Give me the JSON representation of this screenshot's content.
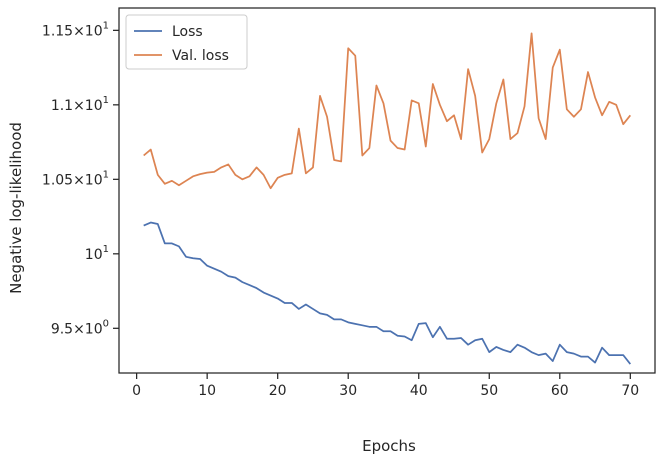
{
  "chart_data": {
    "type": "line",
    "xlabel": "Epochs",
    "ylabel": "Negative log-likelihood",
    "xlim": [
      -2.5,
      73.5
    ],
    "ylim": [
      9.2,
      11.65
    ],
    "x_ticks": [
      0,
      10,
      20,
      30,
      40,
      50,
      60,
      70
    ],
    "x_tick_labels": [
      "0",
      "10",
      "20",
      "30",
      "40",
      "50",
      "60",
      "70"
    ],
    "y_ticks": [
      {
        "value": 9.5,
        "base": "9.5",
        "times": "×",
        "mant": "10",
        "exp": "0"
      },
      {
        "value": 10.0,
        "base": "",
        "times": "",
        "mant": "10",
        "exp": "1"
      },
      {
        "value": 10.5,
        "base": "1.05",
        "times": "×",
        "mant": "10",
        "exp": "1"
      },
      {
        "value": 11.0,
        "base": "1.1",
        "times": "×",
        "mant": "10",
        "exp": "1"
      },
      {
        "value": 11.5,
        "base": "1.15",
        "times": "×",
        "mant": "10",
        "exp": "1"
      }
    ],
    "legend": {
      "location": "upper-left"
    },
    "series": [
      {
        "name": "Loss",
        "color": "#4c72b0",
        "x": [
          1,
          2,
          3,
          4,
          5,
          6,
          7,
          8,
          9,
          10,
          11,
          12,
          13,
          14,
          15,
          16,
          17,
          18,
          19,
          20,
          21,
          22,
          23,
          24,
          25,
          26,
          27,
          28,
          29,
          30,
          31,
          32,
          33,
          34,
          35,
          36,
          37,
          38,
          39,
          40,
          41,
          42,
          43,
          44,
          45,
          46,
          47,
          48,
          49,
          50,
          51,
          52,
          53,
          54,
          55,
          56,
          57,
          58,
          59,
          60,
          61,
          62,
          63,
          64,
          65,
          66,
          67,
          68,
          69,
          70
        ],
        "values": [
          10.19,
          10.21,
          10.2,
          10.07,
          10.07,
          10.05,
          9.98,
          9.97,
          9.965,
          9.92,
          9.9,
          9.88,
          9.85,
          9.84,
          9.81,
          9.79,
          9.77,
          9.74,
          9.72,
          9.7,
          9.67,
          9.67,
          9.63,
          9.66,
          9.63,
          9.6,
          9.59,
          9.56,
          9.56,
          9.54,
          9.53,
          9.52,
          9.51,
          9.51,
          9.48,
          9.48,
          9.45,
          9.445,
          9.42,
          9.53,
          9.535,
          9.44,
          9.51,
          9.43,
          9.43,
          9.435,
          9.39,
          9.42,
          9.43,
          9.34,
          9.375,
          9.355,
          9.34,
          9.39,
          9.37,
          9.34,
          9.32,
          9.33,
          9.28,
          9.39,
          9.34,
          9.33,
          9.31,
          9.31,
          9.27,
          9.37,
          9.32,
          9.32,
          9.32,
          9.26
        ]
      },
      {
        "name": "Val. loss",
        "color": "#dd8452",
        "x": [
          1,
          2,
          3,
          4,
          5,
          6,
          7,
          8,
          9,
          10,
          11,
          12,
          13,
          14,
          15,
          16,
          17,
          18,
          19,
          20,
          21,
          22,
          23,
          24,
          25,
          26,
          27,
          28,
          29,
          30,
          31,
          32,
          33,
          34,
          35,
          36,
          37,
          38,
          39,
          40,
          41,
          42,
          43,
          44,
          45,
          46,
          47,
          48,
          49,
          50,
          51,
          52,
          53,
          54,
          55,
          56,
          57,
          58,
          59,
          60,
          61,
          62,
          63,
          64,
          65,
          66,
          67,
          68,
          69,
          70
        ],
        "values": [
          10.66,
          10.7,
          10.53,
          10.47,
          10.49,
          10.46,
          10.49,
          10.52,
          10.535,
          10.545,
          10.55,
          10.58,
          10.6,
          10.53,
          10.5,
          10.52,
          10.58,
          10.53,
          10.44,
          10.51,
          10.53,
          10.54,
          10.84,
          10.54,
          10.58,
          11.06,
          10.92,
          10.63,
          10.62,
          11.38,
          11.33,
          10.66,
          10.71,
          11.13,
          11.01,
          10.76,
          10.71,
          10.7,
          11.03,
          11.01,
          10.72,
          11.14,
          11.0,
          10.89,
          10.93,
          10.77,
          11.24,
          11.06,
          10.68,
          10.77,
          11.01,
          11.17,
          10.77,
          10.81,
          10.99,
          11.48,
          10.91,
          10.77,
          11.25,
          11.37,
          10.97,
          10.92,
          10.97,
          11.22,
          11.05,
          10.93,
          11.02,
          11.0,
          10.87,
          10.93
        ]
      }
    ]
  }
}
